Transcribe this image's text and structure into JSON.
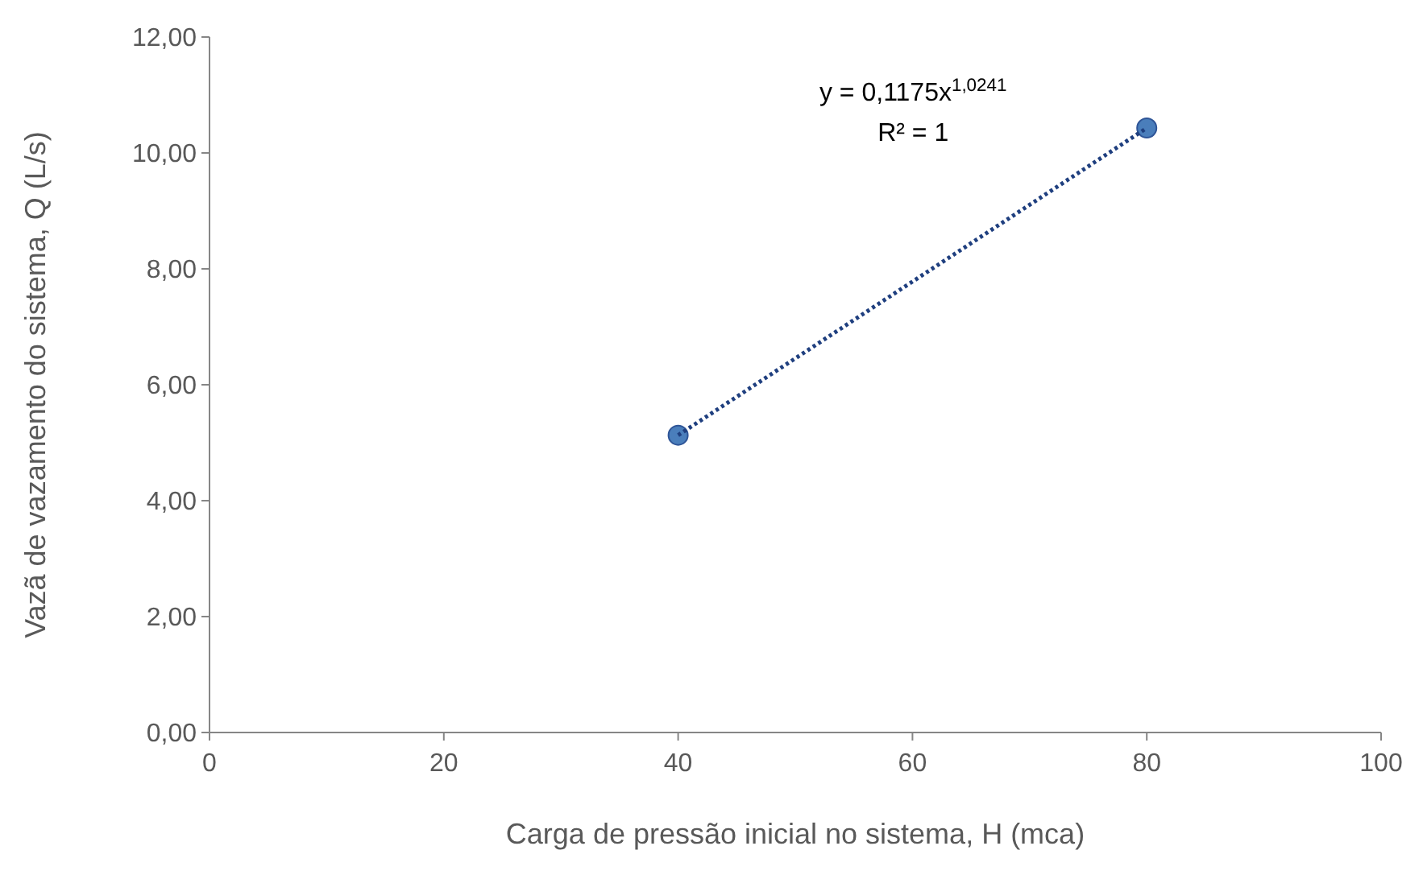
{
  "chart_data": {
    "type": "scatter",
    "xlabel": "Carga de pressão inicial no sistema, H (mca)",
    "ylabel": "Vazã de vazamento do sistema, Q (L/s)",
    "x": [
      40,
      80
    ],
    "series": [
      {
        "color": "#4a7ebb",
        "values": [
          5.13,
          10.43
        ],
        "marker": "circle"
      },
      {
        "type": "line",
        "color": "#1f3f7f",
        "x": [
          40,
          80
        ],
        "values": [
          5.13,
          10.43
        ],
        "line_style": "dotted",
        "marker": "none"
      }
    ],
    "annotations": [
      "y = 0,1175x$^{1,0241}$",
      "R² = 1"
    ],
    "xlim": [
      0,
      100
    ],
    "xticks": [
      0,
      20,
      40,
      60,
      80,
      100
    ],
    "ylim": [
      0,
      12
    ],
    "yticks": [
      {
        "value": 0,
        "label": "0,00"
      },
      {
        "value": 2,
        "label": "2,00"
      },
      {
        "value": 4,
        "label": "4,00"
      },
      {
        "value": 6,
        "label": "6,00"
      },
      {
        "value": 8,
        "label": "8,00"
      },
      {
        "value": 10,
        "label": "10,00"
      },
      {
        "value": 12,
        "label": "12,00"
      }
    ],
    "grid": false
  }
}
